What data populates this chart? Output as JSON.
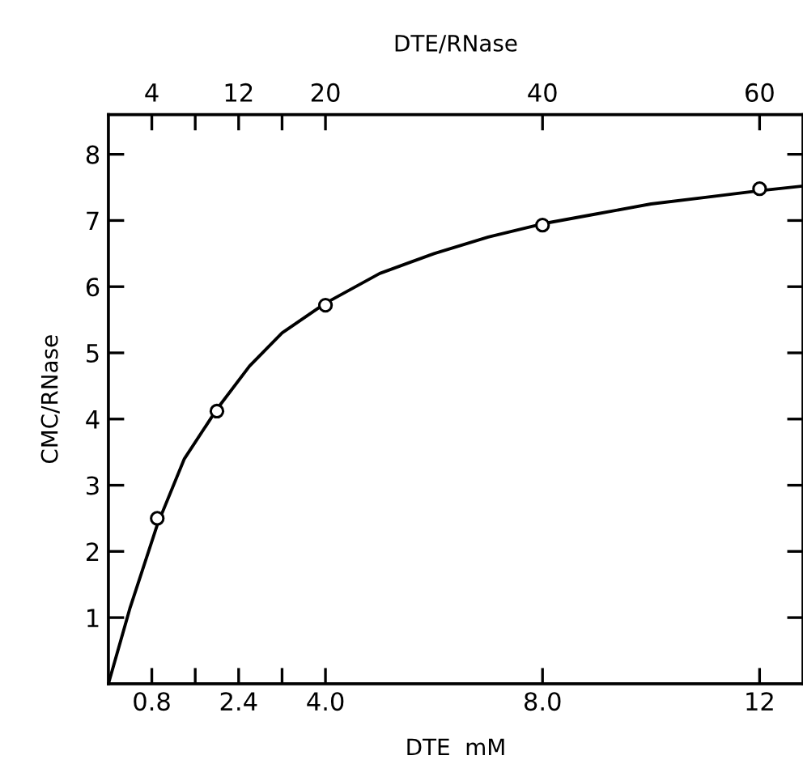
{
  "chart_data": {
    "type": "scatter",
    "xlabel": "DTE  mM",
    "ylabel": "CMC/RNase",
    "x2label": "DTE/RNase",
    "xlim": [
      0,
      12.8
    ],
    "ylim": [
      0,
      8.6
    ],
    "x2lim": [
      0,
      64
    ],
    "xticks": [
      {
        "value": 0.8,
        "label": "0.8"
      },
      {
        "value": 1.6,
        "label": null
      },
      {
        "value": 2.4,
        "label": "2.4"
      },
      {
        "value": 3.2,
        "label": null
      },
      {
        "value": 4.0,
        "label": "4.0"
      },
      {
        "value": 8.0,
        "label": "8.0"
      },
      {
        "value": 12,
        "label": "12"
      }
    ],
    "x2ticks": [
      4,
      {
        "value": 8,
        "label": null
      },
      12,
      {
        "value": 16,
        "label": null
      },
      20,
      40,
      60
    ],
    "yticks": [
      1,
      2,
      3,
      4,
      5,
      6,
      7,
      8
    ],
    "grid": false,
    "legend": false,
    "series": [
      {
        "type": "line",
        "color": "#000000",
        "marker": "none",
        "line_style": "solid",
        "x": [
          0,
          0.4,
          0.9,
          1.4,
          2.0,
          2.6,
          3.2,
          4.0,
          5.0,
          6.0,
          7.0,
          8.0,
          9.0,
          10.0,
          11.0,
          12.0,
          12.8
        ],
        "values": [
          0,
          1.15,
          2.4,
          3.4,
          4.15,
          4.8,
          5.3,
          5.75,
          6.2,
          6.5,
          6.75,
          6.95,
          7.1,
          7.25,
          7.35,
          7.45,
          7.52
        ]
      },
      {
        "color": "#000000",
        "marker": "circle",
        "x": [
          0.9,
          2.0,
          4.0,
          8.0,
          12.0
        ],
        "values": [
          2.5,
          4.12,
          5.72,
          6.93,
          7.48
        ]
      }
    ]
  }
}
